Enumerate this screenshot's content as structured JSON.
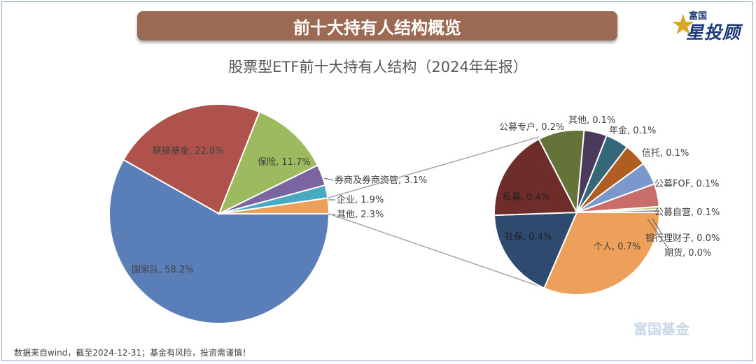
{
  "banner_title": "前十大持有人结构概览",
  "logo": {
    "line1": "富国",
    "line2": "星投顾"
  },
  "watermark": "富国基金",
  "footnote": "数据来自wind，截至2024-12-31；基金有风险，投资需谨慎！",
  "colors": {
    "banner": "#9c6a53",
    "connector": "#a6a6a6"
  },
  "chart_data": [
    {
      "type": "pie",
      "title": "股票型ETF前十大持有人结构（2024年年报）",
      "slices": [
        {
          "label": "国家队",
          "value": 58.2,
          "display": "国家队, 58.2%",
          "color": "#5a7fb8"
        },
        {
          "label": "联接基金",
          "value": 22.8,
          "display": "联接基金, 22.8%",
          "color": "#b0524c"
        },
        {
          "label": "保险",
          "value": 11.7,
          "display": "保险, 11.7%",
          "color": "#9dbb5e"
        },
        {
          "label": "券商及券商资管",
          "value": 3.1,
          "display": "券商及券商资管, 3.1%",
          "color": "#7b65a1"
        },
        {
          "label": "企业",
          "value": 1.9,
          "display": "企业, 1.9%",
          "color": "#4aa9c2"
        },
        {
          "label": "其他",
          "value": 2.3,
          "display": "其他, 2.3%",
          "color": "#eda05a"
        }
      ]
    },
    {
      "type": "pie",
      "title": "",
      "breakdown_of": "其他",
      "slices": [
        {
          "label": "个人",
          "value": 0.7,
          "display": "个人, 0.7%",
          "color": "#eda05a"
        },
        {
          "label": "社保",
          "value": 0.4,
          "display": "社保, 0.4%",
          "color": "#2f4a6f"
        },
        {
          "label": "私募",
          "value": 0.4,
          "display": "私募, 0.4%",
          "color": "#6e2d2b"
        },
        {
          "label": "公募专户",
          "value": 0.2,
          "display": "公募专户, 0.2%",
          "color": "#647337"
        },
        {
          "label": "其他",
          "value": 0.1,
          "display": "其他, 0.1%",
          "color": "#4a3a5c"
        },
        {
          "label": "年金",
          "value": 0.1,
          "display": "年金, 0.1%",
          "color": "#346878"
        },
        {
          "label": "信托",
          "value": 0.1,
          "display": "信托, 0.1%",
          "color": "#b05d22"
        },
        {
          "label": "公募FOF",
          "value": 0.1,
          "display": "公募FOF, 0.1%",
          "color": "#7b98cc"
        },
        {
          "label": "公募自营",
          "value": 0.1,
          "display": "公募自营, 0.1%",
          "color": "#c96d6a"
        },
        {
          "label": "银行理财子",
          "value": 0.0,
          "display": "银行理财子, 0.0%",
          "color": "#b4cd83"
        },
        {
          "label": "期货",
          "value": 0.0,
          "display": "期货, 0.0%",
          "color": "#9480b4"
        }
      ]
    }
  ]
}
